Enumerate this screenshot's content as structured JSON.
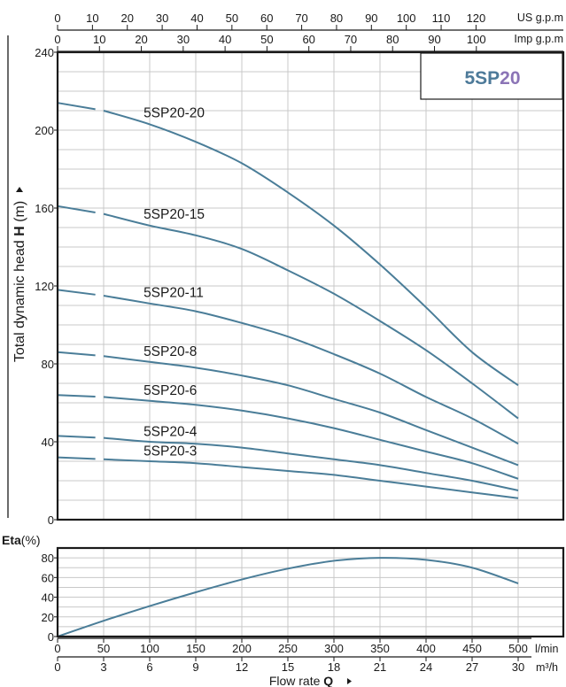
{
  "chart_data": [
    {
      "type": "line",
      "title": "5SP20",
      "title_parts": [
        "5SP",
        "20"
      ],
      "title_colors": [
        "#4d7a99",
        "#8b74b6"
      ],
      "ylabel_main": "Total dynamic head ",
      "ylabel_bold": "H",
      "ylabel_unit": " (m)",
      "ylim": [
        0,
        240
      ],
      "yticks": [
        0,
        40,
        80,
        120,
        160,
        200,
        240
      ],
      "xlim": [
        0,
        30
      ],
      "x_unit": "m³/h",
      "grid": true,
      "line_color": "#4a7d98",
      "series": [
        {
          "name": "5SP20-20",
          "x": [
            0,
            3,
            6,
            9,
            12,
            15,
            18,
            21,
            24,
            27,
            30
          ],
          "values": [
            214,
            210,
            203,
            194,
            183,
            168,
            151,
            131,
            109,
            86,
            69
          ]
        },
        {
          "name": "5SP20-15",
          "x": [
            0,
            3,
            6,
            9,
            12,
            15,
            18,
            21,
            24,
            27,
            30
          ],
          "values": [
            161,
            157,
            151,
            146,
            139,
            128,
            116,
            102,
            87,
            70,
            52
          ]
        },
        {
          "name": "5SP20-11",
          "x": [
            0,
            3,
            6,
            9,
            12,
            15,
            18,
            21,
            24,
            27,
            30
          ],
          "values": [
            118,
            115,
            111,
            107,
            101,
            94,
            85,
            75,
            63,
            52,
            39
          ]
        },
        {
          "name": "5SP20-8",
          "x": [
            0,
            3,
            6,
            9,
            12,
            15,
            18,
            21,
            24,
            27,
            30
          ],
          "values": [
            86,
            84,
            81,
            78,
            74,
            69,
            62,
            55,
            46,
            37,
            28
          ]
        },
        {
          "name": "5SP20-6",
          "x": [
            0,
            3,
            6,
            9,
            12,
            15,
            18,
            21,
            24,
            27,
            30
          ],
          "values": [
            64,
            63,
            61,
            59,
            56,
            52,
            47,
            41,
            35,
            29,
            21
          ]
        },
        {
          "name": "5SP20-4",
          "x": [
            0,
            3,
            6,
            9,
            12,
            15,
            18,
            21,
            24,
            27,
            30
          ],
          "values": [
            43,
            42,
            40,
            39,
            37,
            34,
            31,
            28,
            24,
            20,
            15
          ]
        },
        {
          "name": "5SP20-3",
          "x": [
            0,
            3,
            6,
            9,
            12,
            15,
            18,
            21,
            24,
            27,
            30
          ],
          "values": [
            32,
            31,
            30,
            29,
            27,
            25,
            23,
            20,
            17,
            14,
            11
          ]
        }
      ]
    },
    {
      "type": "line",
      "ylabel": "Eta(%)",
      "ylim": [
        0,
        90
      ],
      "yticks": [
        0,
        20,
        40,
        60,
        80
      ],
      "xlim": [
        0,
        30
      ],
      "grid": true,
      "series": [
        {
          "x": [
            0,
            3,
            6,
            9,
            12,
            15,
            18,
            21,
            24,
            27,
            30
          ],
          "values": [
            0,
            16,
            31,
            45,
            58,
            69,
            77,
            80,
            78,
            70,
            54
          ]
        }
      ]
    }
  ],
  "top_axes": [
    {
      "label": "US g.p.m",
      "ticks": [
        0,
        10,
        20,
        30,
        40,
        50,
        60,
        70,
        80,
        90,
        100,
        110,
        120
      ],
      "per_m3h": 4.4029
    },
    {
      "label": "Imp g.p.m",
      "ticks": [
        0,
        10,
        20,
        30,
        40,
        50,
        60,
        70,
        80,
        90,
        100
      ],
      "per_m3h": 3.6662
    }
  ],
  "bottom_axes": [
    {
      "label": "l/min",
      "ticks": [
        0,
        50,
        100,
        150,
        200,
        250,
        300,
        350,
        400,
        450,
        500
      ],
      "per_m3h": 16.6667
    },
    {
      "label": "m³/h",
      "ticks": [
        0,
        3,
        6,
        9,
        12,
        15,
        18,
        21,
        24,
        27,
        30
      ],
      "per_m3h": 1
    }
  ],
  "xlabel_main": "Flow  rate  ",
  "xlabel_bold": "Q"
}
